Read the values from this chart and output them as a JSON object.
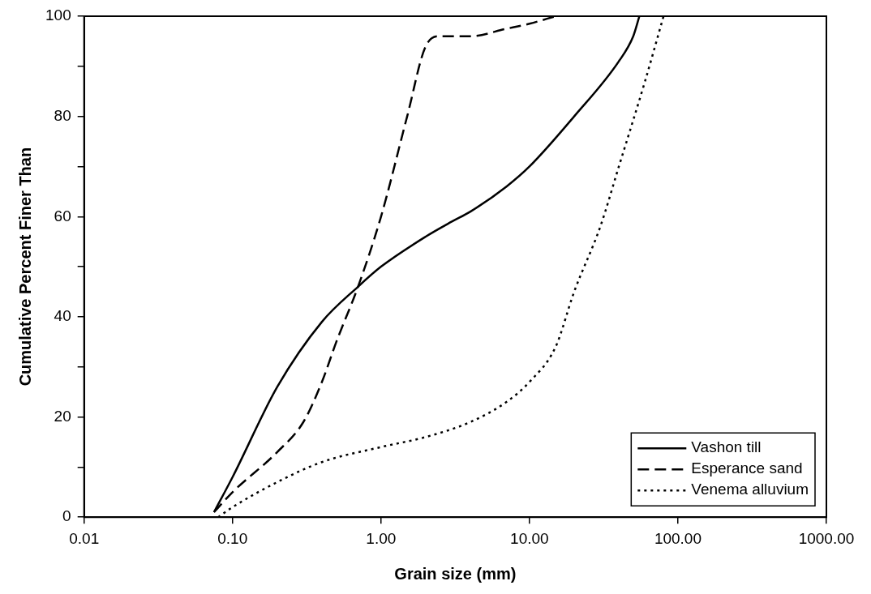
{
  "chart_data": {
    "type": "line",
    "xlabel": "Grain size (mm)",
    "ylabel": "Cumulative Percent Finer Than",
    "log": "x",
    "xlim": [
      0.01,
      1000
    ],
    "ylim": [
      0,
      100
    ],
    "xticks": [
      {
        "value": 0.01,
        "label": "0.01"
      },
      {
        "value": 0.1,
        "label": "0.10"
      },
      {
        "value": 1,
        "label": "1.00"
      },
      {
        "value": 10,
        "label": "10.00"
      },
      {
        "value": 100,
        "label": "100.00"
      },
      {
        "value": 1000,
        "label": "1000.00"
      }
    ],
    "yticks": [
      0,
      {
        "value": 10,
        "label": null
      },
      20,
      {
        "value": 30,
        "label": null
      },
      40,
      {
        "value": 50,
        "label": null
      },
      60,
      {
        "value": 70,
        "label": null
      },
      80,
      {
        "value": 90,
        "label": null
      },
      100
    ],
    "grid": false,
    "legend": "bottom right",
    "marker": "none",
    "series": [
      {
        "name": "Vashon till",
        "color": "#000000",
        "line_style": "solid",
        "x": [
          0.075,
          0.1,
          0.2,
          0.4,
          0.7,
          1,
          2,
          3,
          4,
          7,
          10,
          20,
          40,
          50,
          55
        ],
        "values": [
          1,
          8,
          26,
          39,
          46,
          50,
          56,
          59,
          61,
          66,
          70,
          80,
          91,
          96,
          100
        ]
      },
      {
        "name": "Esperance sand",
        "color": "#000000",
        "line_style": "dashed",
        "x": [
          0.075,
          0.1,
          0.2,
          0.3,
          0.4,
          0.5,
          0.7,
          1,
          1.5,
          2,
          2.5,
          4,
          7,
          10,
          15
        ],
        "values": [
          1,
          5,
          13,
          19,
          27,
          35,
          46,
          60,
          80,
          94,
          96,
          96,
          97.5,
          98.5,
          100
        ]
      },
      {
        "name": "Venema alluvium",
        "color": "#000000",
        "line_style": "dotted",
        "x": [
          0.08,
          0.1,
          0.2,
          0.4,
          1,
          2,
          4,
          7,
          10,
          15,
          20,
          30,
          40,
          60,
          80
        ],
        "values": [
          0,
          2,
          7,
          11,
          14,
          16,
          19,
          23,
          27,
          34,
          45,
          58,
          70,
          87,
          100
        ]
      }
    ]
  }
}
